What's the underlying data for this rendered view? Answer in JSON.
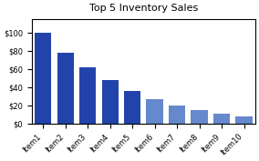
{
  "chart_data": {
    "type": "bar",
    "title": "Top 5 Inventory Sales",
    "categories": [
      "Item1",
      "Item2",
      "Item3",
      "Item4",
      "Item5",
      "Item6",
      "Item7",
      "Item8",
      "Item9",
      "Item10"
    ],
    "values": [
      100,
      78,
      62,
      48,
      36,
      27,
      20,
      15,
      11,
      8
    ],
    "colors": [
      "#2244aa",
      "#2244aa",
      "#2244aa",
      "#2244aa",
      "#2244aa",
      "#6688cc",
      "#6688cc",
      "#6688cc",
      "#6688cc",
      "#6688cc"
    ],
    "ylim": [
      0,
      115
    ],
    "yticks": [
      {
        "value": 0,
        "label": "$0"
      },
      {
        "value": 20,
        "label": "$20"
      },
      {
        "value": 40,
        "label": "$40"
      },
      {
        "value": 60,
        "label": "$60"
      },
      {
        "value": 80,
        "label": "$80"
      },
      {
        "value": 100,
        "label": "$100"
      }
    ],
    "grid": false
  }
}
